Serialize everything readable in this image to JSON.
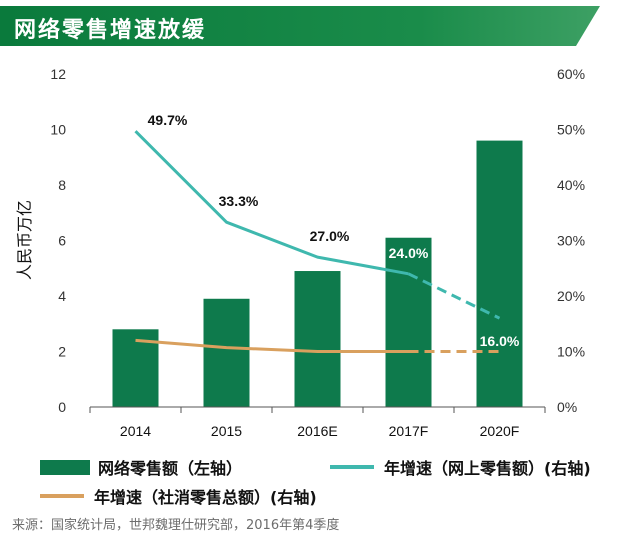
{
  "header": {
    "title": "网络零售增速放缓"
  },
  "chart_data": {
    "type": "bar",
    "categories": [
      "2014",
      "2015",
      "2016E",
      "2017F",
      "2020F"
    ],
    "ylabel": "人民币万亿",
    "ylim": [
      0,
      12
    ],
    "yticks": [
      "0",
      "2",
      "4",
      "6",
      "8",
      "10",
      "12"
    ],
    "y2lim": [
      0,
      60
    ],
    "y2ticks": [
      "0%",
      "10%",
      "20%",
      "30%",
      "40%",
      "50%",
      "60%"
    ],
    "series": [
      {
        "name": "网络零售额（左轴）",
        "type": "bar",
        "axis": "left",
        "color": "#0e7a4c",
        "values": [
          2.8,
          3.9,
          4.9,
          6.1,
          9.6
        ]
      },
      {
        "name": "年增速（网上零售额）(右轴)",
        "type": "line",
        "axis": "right",
        "color": "#3fb8ae",
        "values": [
          49.7,
          33.3,
          27.0,
          24.0,
          16.0
        ],
        "labels": [
          "49.7%",
          "33.3%",
          "27.0%",
          "24.0%",
          "16.0%"
        ]
      },
      {
        "name": "年增速（社消零售总额）(右轴)",
        "type": "line",
        "axis": "right",
        "color": "#d9a05e",
        "values": [
          12.0,
          10.7,
          10.0,
          10.0,
          10.0
        ]
      }
    ]
  },
  "legend": {
    "bar": "网络零售额（左轴）",
    "online": "年增速（网上零售额）(右轴)",
    "total": "年增速（社消零售总额）(右轴)"
  },
  "source": "来源：国家统计局，世邦魏理仕研究部，2016年第4季度"
}
